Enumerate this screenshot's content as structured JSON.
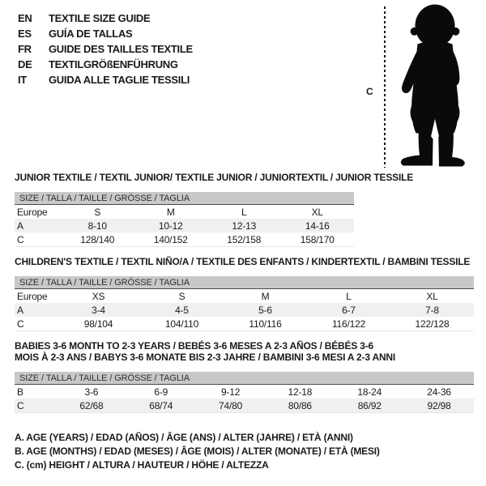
{
  "header": {
    "languages": [
      {
        "code": "EN",
        "title": "TEXTILE SIZE GUIDE"
      },
      {
        "code": "ES",
        "title": "GUÍA DE TALLAS"
      },
      {
        "code": "FR",
        "title": "GUIDE DES TAILLES TEXTILE"
      },
      {
        "code": "DE",
        "title": "TEXTILGRÖßENFÜHRUNG"
      },
      {
        "code": "IT",
        "title": "GUIDA ALLE TAGLIE TESSILI"
      }
    ]
  },
  "figure": {
    "measure_label": "C",
    "silhouette": "baby-toddler-standing"
  },
  "sections": [
    {
      "title": "JUNIOR TEXTILE / TEXTIL JUNIOR/ TEXTILE JUNIOR / JUNIORTEXTIL / JUNIOR TESSILE",
      "size_bar": "SIZE / TALLA / TAILLE / GRÖSSE / TAGLIA",
      "columns": [
        "Europe",
        "S",
        "M",
        "L",
        "XL"
      ],
      "rows": [
        {
          "label": "A",
          "values": [
            "8-10",
            "10-12",
            "12-13",
            "14-16"
          ]
        },
        {
          "label": "C",
          "values": [
            "128/140",
            "140/152",
            "152/158",
            "158/170"
          ]
        }
      ]
    },
    {
      "title": "CHILDREN'S TEXTILE / TEXTIL NIÑO/A / TEXTILE DES ENFANTS / KINDERTEXTIL / BAMBINI TESSILE",
      "size_bar": "SIZE / TALLA / TAILLE / GRÖSSE / TAGLIA",
      "columns": [
        "Europe",
        "XS",
        "S",
        "M",
        "L",
        "XL"
      ],
      "rows": [
        {
          "label": "A",
          "values": [
            "3-4",
            "4-5",
            "5-6",
            "6-7",
            "7-8"
          ]
        },
        {
          "label": "C",
          "values": [
            "98/104",
            "104/110",
            "110/116",
            "116/122",
            "122/128"
          ]
        }
      ]
    },
    {
      "title": "BABIES 3-6 MONTH TO 2-3 YEARS / BEBÉS 3-6 MESES A 2-3 AÑOS / BÉBÉS 3-6 MOIS À 2-3 ANS / BABYS 3-6 MONATE BIS 2-3 JAHRE / BAMBINI 3-6 MESI A 2-3 ANNI",
      "size_bar": "SIZE / TALLA / TAILLE / GRÖSSE / TAGLIA",
      "columns": [],
      "rows": [
        {
          "label": "B",
          "values": [
            "3-6",
            "6-9",
            "9-12",
            "12-18",
            "18-24",
            "24-36"
          ]
        },
        {
          "label": "C",
          "values": [
            "62/68",
            "68/74",
            "74/80",
            "80/86",
            "86/92",
            "92/98"
          ]
        }
      ]
    }
  ],
  "legend": [
    "A. AGE (YEARS) / EDAD (AÑOS) / ÂGE (ANS) / ALTER (JAHRE) / ETÀ (ANNI)",
    "B. AGE (MONTHS) / EDAD (MESES) / ÂGE (MOIS) / ALTER (MONATE) / ETÀ (MESI)",
    "C. (cm) HEIGHT / ALTURA / HAUTEUR / HÖHE / ALTEZZA"
  ],
  "colors": {
    "ink": "#1a1a1a",
    "size_bar_bg": "#c8c8c8",
    "row_stripe_bg": "#f0f0f0",
    "silhouette": "#0a0a0a"
  }
}
